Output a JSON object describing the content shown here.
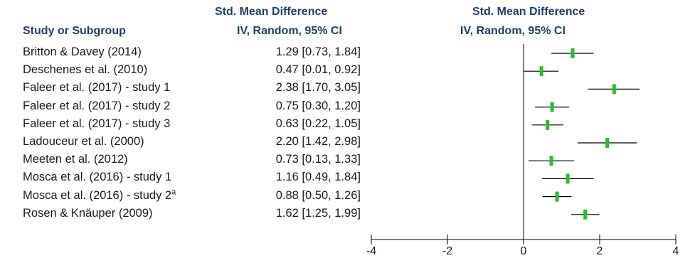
{
  "headers": {
    "study": "Study or Subgroup",
    "smd_title": "Std. Mean Difference",
    "smd_method": "IV, Random, 95% CI",
    "plot_title": "Std. Mean Difference",
    "plot_method": "IV, Random, 95% CI"
  },
  "studies": [
    {
      "name": "Britton & Davey (2014)",
      "sup": "",
      "ci_text": "1.29 [0.73, 1.84]"
    },
    {
      "name": "Deschenes et al. (2010)",
      "sup": "",
      "ci_text": "0.47 [0.01, 0.92]"
    },
    {
      "name": "Faleer et al. (2017) - study 1",
      "sup": "",
      "ci_text": "2.38 [1.70, 3.05]"
    },
    {
      "name": "Faleer et al. (2017) - study 2",
      "sup": "",
      "ci_text": "0.75 [0.30, 1.20]"
    },
    {
      "name": "Faleer et al. (2017) - study 3",
      "sup": "",
      "ci_text": "0.63 [0.22, 1.05]"
    },
    {
      "name": "Ladouceur et al. (2000)",
      "sup": "",
      "ci_text": "2.20 [1.42, 2.98]"
    },
    {
      "name": "Meeten et al. (2012)",
      "sup": "",
      "ci_text": "0.73 [0.13, 1.33]"
    },
    {
      "name": "Mosca et al. (2016) - study 1",
      "sup": "",
      "ci_text": "1.16 [0.49, 1.84]"
    },
    {
      "name": "Mosca et al. (2016) - study 2",
      "sup": "a",
      "ci_text": "0.88 [0.50, 1.26]"
    },
    {
      "name": "Rosen & Knäuper (2009)",
      "sup": "",
      "ci_text": "1.62 [1.25, 1.99]"
    }
  ],
  "colors": {
    "header": "#1f3f6f",
    "marker": "#22c322",
    "line": "#000000"
  },
  "chart_data": {
    "type": "forest",
    "xlim": [
      -4,
      4
    ],
    "xticks": [
      -4,
      -2,
      0,
      2,
      4
    ],
    "xtick_labels": [
      "-4",
      "-2",
      "0",
      "2",
      "4"
    ],
    "reference_line": 0,
    "points": [
      {
        "est": 1.29,
        "lo": 0.73,
        "hi": 1.84
      },
      {
        "est": 0.47,
        "lo": 0.01,
        "hi": 0.92
      },
      {
        "est": 2.38,
        "lo": 1.7,
        "hi": 3.05
      },
      {
        "est": 0.75,
        "lo": 0.3,
        "hi": 1.2
      },
      {
        "est": 0.63,
        "lo": 0.22,
        "hi": 1.05
      },
      {
        "est": 2.2,
        "lo": 1.42,
        "hi": 2.98
      },
      {
        "est": 0.73,
        "lo": 0.13,
        "hi": 1.33
      },
      {
        "est": 1.16,
        "lo": 0.49,
        "hi": 1.84
      },
      {
        "est": 0.88,
        "lo": 0.5,
        "hi": 1.26
      },
      {
        "est": 1.62,
        "lo": 1.25,
        "hi": 1.99
      }
    ]
  }
}
